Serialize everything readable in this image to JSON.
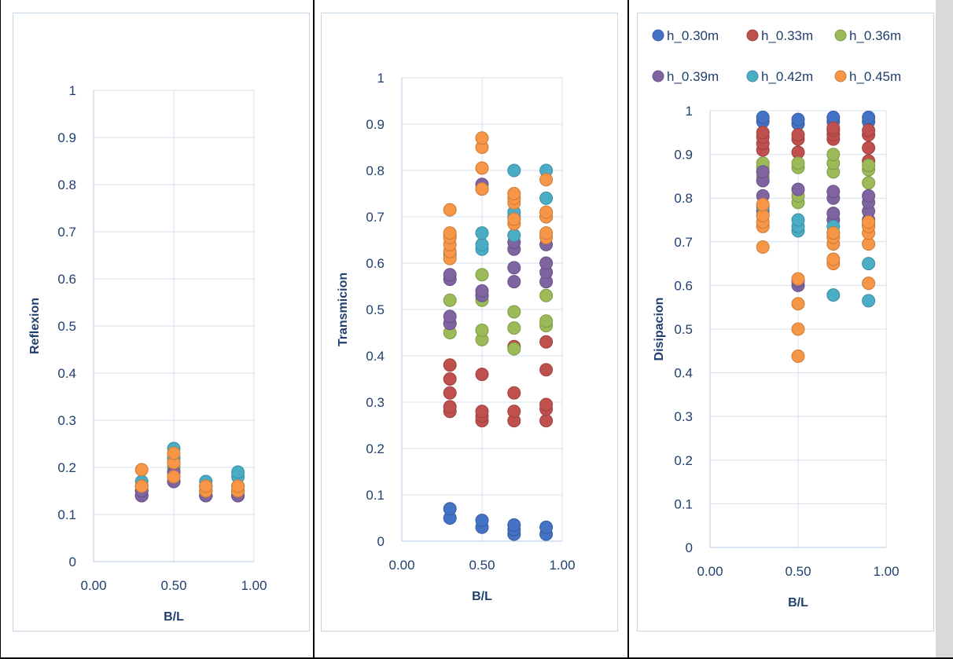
{
  "chart_data": [
    {
      "type": "scatter",
      "xlabel": "B/L",
      "ylabel": "Reflexion",
      "xlim": [
        0,
        1
      ],
      "ylim": [
        0,
        1
      ],
      "xticks": [
        "0.00",
        "0.50",
        "1.00"
      ],
      "yticks": [
        "0",
        "0.1",
        "0.2",
        "0.3",
        "0.4",
        "0.5",
        "0.6",
        "0.7",
        "0.8",
        "0.9",
        "1"
      ],
      "grid": true,
      "series": [
        {
          "color": "#4472c4",
          "x": [
            0.3,
            0.3,
            0.5,
            0.5,
            0.5,
            0.7,
            0.7,
            0.9,
            0.9
          ],
          "y": [
            0.14,
            0.15,
            0.17,
            0.19,
            0.2,
            0.14,
            0.15,
            0.14,
            0.15
          ]
        },
        {
          "color": "#c0504d",
          "x": [
            0.3,
            0.3,
            0.5,
            0.5,
            0.7,
            0.7,
            0.9,
            0.9
          ],
          "y": [
            0.14,
            0.16,
            0.18,
            0.21,
            0.14,
            0.15,
            0.14,
            0.15
          ]
        },
        {
          "color": "#9bbb59",
          "x": [
            0.3,
            0.3,
            0.5,
            0.5,
            0.7,
            0.7,
            0.9,
            0.9
          ],
          "y": [
            0.15,
            0.16,
            0.2,
            0.22,
            0.15,
            0.16,
            0.15,
            0.16
          ]
        },
        {
          "color": "#8064a2",
          "x": [
            0.3,
            0.3,
            0.5,
            0.5,
            0.5,
            0.7,
            0.7,
            0.9,
            0.9
          ],
          "y": [
            0.14,
            0.15,
            0.17,
            0.19,
            0.21,
            0.14,
            0.16,
            0.14,
            0.16
          ]
        },
        {
          "color": "#4bacc6",
          "x": [
            0.3,
            0.3,
            0.5,
            0.5,
            0.7,
            0.7,
            0.9,
            0.9
          ],
          "y": [
            0.16,
            0.17,
            0.22,
            0.24,
            0.16,
            0.17,
            0.18,
            0.19
          ]
        },
        {
          "color": "#f79646",
          "x": [
            0.3,
            0.3,
            0.5,
            0.5,
            0.5,
            0.7,
            0.7,
            0.9,
            0.9
          ],
          "y": [
            0.16,
            0.195,
            0.18,
            0.21,
            0.23,
            0.15,
            0.16,
            0.15,
            0.16
          ]
        }
      ]
    },
    {
      "type": "scatter",
      "xlabel": "B/L",
      "ylabel": "Transmicion",
      "xlim": [
        0,
        1
      ],
      "ylim": [
        0,
        1
      ],
      "xticks": [
        "0.00",
        "0.50",
        "1.00"
      ],
      "yticks": [
        "0",
        "0.1",
        "0.2",
        "0.3",
        "0.4",
        "0.5",
        "0.6",
        "0.7",
        "0.8",
        "0.9",
        "1"
      ],
      "grid": true,
      "series": [
        {
          "color": "#4472c4",
          "x": [
            0.3,
            0.3,
            0.5,
            0.5,
            0.7,
            0.7,
            0.7,
            0.9,
            0.9
          ],
          "y": [
            0.05,
            0.07,
            0.03,
            0.045,
            0.015,
            0.025,
            0.035,
            0.015,
            0.03
          ]
        },
        {
          "color": "#c0504d",
          "x": [
            0.3,
            0.3,
            0.3,
            0.3,
            0.3,
            0.5,
            0.5,
            0.5,
            0.5,
            0.7,
            0.7,
            0.7,
            0.7,
            0.9,
            0.9,
            0.9,
            0.9,
            0.9
          ],
          "y": [
            0.28,
            0.29,
            0.32,
            0.35,
            0.38,
            0.26,
            0.27,
            0.28,
            0.36,
            0.26,
            0.28,
            0.32,
            0.42,
            0.26,
            0.285,
            0.295,
            0.37,
            0.43
          ]
        },
        {
          "color": "#9bbb59",
          "x": [
            0.3,
            0.3,
            0.3,
            0.5,
            0.5,
            0.5,
            0.5,
            0.5,
            0.7,
            0.7,
            0.7,
            0.9,
            0.9,
            0.9
          ],
          "y": [
            0.45,
            0.47,
            0.52,
            0.435,
            0.455,
            0.52,
            0.53,
            0.575,
            0.415,
            0.46,
            0.495,
            0.465,
            0.475,
            0.53
          ]
        },
        {
          "color": "#8064a2",
          "x": [
            0.3,
            0.3,
            0.3,
            0.3,
            0.5,
            0.5,
            0.5,
            0.5,
            0.7,
            0.7,
            0.7,
            0.7,
            0.9,
            0.9,
            0.9,
            0.9
          ],
          "y": [
            0.47,
            0.485,
            0.565,
            0.575,
            0.53,
            0.54,
            0.76,
            0.77,
            0.56,
            0.59,
            0.63,
            0.645,
            0.56,
            0.58,
            0.6,
            0.64
          ]
        },
        {
          "color": "#4bacc6",
          "x": [
            0.3,
            0.3,
            0.5,
            0.5,
            0.5,
            0.7,
            0.7,
            0.7,
            0.7,
            0.9,
            0.9,
            0.9
          ],
          "y": [
            0.62,
            0.66,
            0.63,
            0.64,
            0.665,
            0.66,
            0.7,
            0.71,
            0.8,
            0.7,
            0.74,
            0.8
          ]
        },
        {
          "color": "#f79646",
          "x": [
            0.3,
            0.3,
            0.3,
            0.3,
            0.3,
            0.3,
            0.5,
            0.5,
            0.5,
            0.5,
            0.7,
            0.7,
            0.7,
            0.7,
            0.7,
            0.9,
            0.9,
            0.9,
            0.9,
            0.9
          ],
          "y": [
            0.61,
            0.625,
            0.64,
            0.655,
            0.665,
            0.715,
            0.76,
            0.805,
            0.85,
            0.87,
            0.685,
            0.695,
            0.73,
            0.74,
            0.75,
            0.655,
            0.665,
            0.7,
            0.71,
            0.78
          ]
        }
      ]
    },
    {
      "type": "scatter",
      "xlabel": "B/L",
      "ylabel": "Disipacion",
      "xlim": [
        0,
        1
      ],
      "ylim": [
        0,
        1
      ],
      "xticks": [
        "0.00",
        "0.50",
        "1.00"
      ],
      "yticks": [
        "0",
        "0.1",
        "0.2",
        "0.3",
        "0.4",
        "0.5",
        "0.6",
        "0.7",
        "0.8",
        "0.9",
        "1"
      ],
      "grid": true,
      "legend": "top",
      "series": [
        {
          "name": "h_0.30m",
          "color": "#4472c4",
          "x": [
            0.3,
            0.3,
            0.5,
            0.5,
            0.7,
            0.7,
            0.9,
            0.9
          ],
          "y": [
            0.975,
            0.985,
            0.97,
            0.98,
            0.975,
            0.985,
            0.975,
            0.985
          ]
        },
        {
          "name": "h_0.33m",
          "color": "#c0504d",
          "x": [
            0.3,
            0.3,
            0.3,
            0.3,
            0.5,
            0.5,
            0.5,
            0.7,
            0.7,
            0.7,
            0.7,
            0.9,
            0.9,
            0.9,
            0.9
          ],
          "y": [
            0.91,
            0.925,
            0.94,
            0.95,
            0.905,
            0.935,
            0.945,
            0.935,
            0.945,
            0.955,
            0.96,
            0.885,
            0.915,
            0.945,
            0.955
          ]
        },
        {
          "name": "h_0.36m",
          "color": "#9bbb59",
          "x": [
            0.3,
            0.3,
            0.3,
            0.5,
            0.5,
            0.5,
            0.5,
            0.7,
            0.7,
            0.7,
            0.9,
            0.9,
            0.9
          ],
          "y": [
            0.85,
            0.87,
            0.88,
            0.79,
            0.805,
            0.87,
            0.88,
            0.86,
            0.88,
            0.9,
            0.835,
            0.865,
            0.875
          ]
        },
        {
          "name": "h_0.39m",
          "color": "#8064a2",
          "x": [
            0.3,
            0.3,
            0.3,
            0.3,
            0.5,
            0.5,
            0.5,
            0.7,
            0.7,
            0.7,
            0.7,
            0.9,
            0.9,
            0.9,
            0.9
          ],
          "y": [
            0.77,
            0.805,
            0.84,
            0.86,
            0.6,
            0.61,
            0.82,
            0.75,
            0.765,
            0.8,
            0.815,
            0.75,
            0.77,
            0.79,
            0.805
          ]
        },
        {
          "name": "h_0.42m",
          "color": "#4bacc6",
          "x": [
            0.3,
            0.3,
            0.5,
            0.5,
            0.5,
            0.7,
            0.7,
            0.7,
            0.9,
            0.9,
            0.9
          ],
          "y": [
            0.76,
            0.78,
            0.725,
            0.735,
            0.75,
            0.578,
            0.72,
            0.735,
            0.565,
            0.65,
            0.74
          ]
        },
        {
          "name": "h_0.45m",
          "color": "#f79646",
          "x": [
            0.3,
            0.3,
            0.3,
            0.3,
            0.3,
            0.5,
            0.5,
            0.5,
            0.5,
            0.7,
            0.7,
            0.7,
            0.7,
            0.7,
            0.9,
            0.9,
            0.9,
            0.9,
            0.9
          ],
          "y": [
            0.688,
            0.735,
            0.745,
            0.76,
            0.785,
            0.438,
            0.5,
            0.558,
            0.615,
            0.65,
            0.66,
            0.695,
            0.71,
            0.72,
            0.605,
            0.695,
            0.72,
            0.735,
            0.745
          ]
        }
      ]
    }
  ]
}
